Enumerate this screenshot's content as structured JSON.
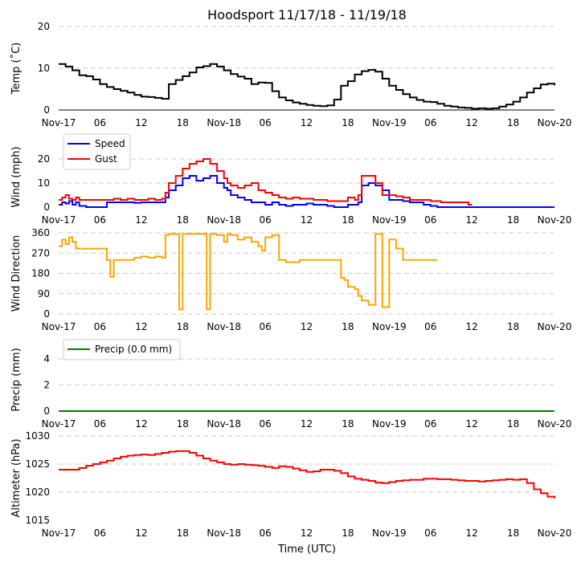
{
  "title": "Hoodsport 11/17/18 - 11/19/18",
  "xlabel": "Time (UTC)",
  "x_tick_labels": [
    "Nov-17",
    "06",
    "12",
    "18",
    "Nov-18",
    "06",
    "12",
    "18",
    "Nov-19",
    "06",
    "12",
    "18",
    "Nov-20"
  ],
  "chart_data": [
    {
      "type": "line",
      "ylabel": "Temp ($^\\circ$C)",
      "ylabel_display": "Temp (˚C)",
      "ylim": [
        0,
        20
      ],
      "yticks": [
        0,
        10,
        20
      ],
      "x_unit": "hours since Nov-17 00:00 UTC",
      "xlim": [
        0,
        72
      ],
      "series": [
        {
          "name": "Temp",
          "color": "#000000",
          "x": [
            0,
            1,
            2,
            3,
            4,
            5,
            6,
            7,
            8,
            9,
            10,
            11,
            12,
            13,
            14,
            15,
            16,
            17,
            18,
            19,
            20,
            21,
            22,
            23,
            24,
            25,
            26,
            27,
            28,
            29,
            30,
            31,
            32,
            33,
            34,
            35,
            36,
            37,
            38,
            39,
            40,
            41,
            42,
            43,
            44,
            45,
            46,
            47,
            48,
            49,
            50,
            51,
            52,
            53,
            54,
            55,
            56,
            57,
            58,
            59,
            60,
            61,
            62,
            63,
            64,
            65,
            66,
            67,
            68,
            69,
            70,
            71,
            72
          ],
          "values": [
            11,
            10.4,
            9.5,
            8.3,
            8.1,
            7.3,
            6.2,
            5.5,
            5,
            4.6,
            4.2,
            3.6,
            3.2,
            3.1,
            2.9,
            2.7,
            6.2,
            7.2,
            8.1,
            9,
            10.2,
            10.5,
            11,
            10.4,
            9.5,
            8.6,
            8,
            7.5,
            6.2,
            6.6,
            6.5,
            4.5,
            3,
            2.3,
            1.8,
            1.5,
            1.2,
            1,
            0.9,
            1.1,
            2.5,
            5.8,
            6.9,
            8.5,
            9.3,
            9.6,
            9.2,
            7.5,
            5.8,
            4.8,
            3.8,
            3,
            2.4,
            2,
            1.9,
            1.5,
            1,
            0.8,
            0.6,
            0.5,
            0.3,
            0.4,
            0.3,
            0.4,
            0.8,
            1.3,
            2,
            3,
            4.2,
            5.2,
            6.1,
            6.3,
            5.9
          ]
        }
      ]
    },
    {
      "type": "line",
      "ylabel": "Wind (mph)",
      "ylim": [
        0,
        25
      ],
      "yticks": [
        0,
        10,
        20
      ],
      "xlim": [
        0,
        72
      ],
      "legend": "upper-left",
      "series": [
        {
          "name": "Speed",
          "color": "#0000ff",
          "x": [
            0,
            0.5,
            1,
            1.5,
            2,
            2.5,
            3,
            3.5,
            4,
            5,
            6,
            7,
            8,
            9,
            10,
            11,
            12,
            13,
            14,
            15,
            15.5,
            16,
            17,
            18,
            19,
            20,
            21,
            22,
            23,
            24,
            24.5,
            25,
            26,
            27,
            28,
            29,
            30,
            31,
            32,
            33,
            34,
            35,
            36,
            37,
            38,
            39,
            40,
            41,
            42,
            43,
            43.5,
            44,
            45,
            46,
            47,
            48,
            49,
            50,
            51,
            52,
            53,
            54,
            55,
            56,
            57,
            58,
            59,
            60,
            61,
            62,
            63,
            64,
            65,
            66,
            67,
            68,
            69,
            70,
            71,
            72
          ],
          "values": [
            1,
            2,
            1.5,
            2.5,
            1,
            2,
            0.5,
            0.5,
            0,
            0,
            0,
            2,
            2,
            2,
            2,
            1.8,
            2,
            2,
            2,
            2,
            4,
            7,
            9,
            12,
            13,
            11,
            12,
            13,
            10,
            8,
            7,
            5,
            4,
            3,
            2,
            2,
            1,
            2,
            1,
            0.5,
            1,
            1,
            1.5,
            1,
            1,
            0.5,
            0,
            0,
            1,
            1,
            2,
            9,
            10,
            9,
            7,
            3,
            3,
            2.5,
            2,
            2,
            1,
            0.5,
            0,
            0,
            0,
            0,
            0,
            0,
            0,
            0,
            0,
            0,
            0,
            0,
            0,
            0,
            0,
            0,
            0,
            0
          ]
        },
        {
          "name": "Gust",
          "color": "#ff0000",
          "x": [
            0,
            0.5,
            1,
            1.5,
            2,
            2.5,
            3,
            3.5,
            7,
            8,
            9,
            10,
            11,
            12,
            13,
            14,
            15,
            15.5,
            16,
            17,
            18,
            19,
            20,
            21,
            22,
            23,
            24,
            24.5,
            25,
            26,
            27,
            28,
            29,
            30,
            31,
            32,
            33,
            34,
            35,
            36,
            37,
            38,
            39,
            42,
            43,
            43.5,
            44,
            45,
            46,
            47,
            48,
            49,
            50,
            51,
            52,
            53,
            54,
            55,
            55.5,
            59.5,
            60
          ],
          "values": [
            3,
            4,
            5,
            3.5,
            3,
            4,
            3,
            3,
            3,
            3.5,
            3,
            3.5,
            3,
            3,
            3.5,
            3,
            3.5,
            6,
            10,
            13,
            16,
            18,
            19,
            20,
            18,
            15,
            12,
            10,
            9,
            8,
            9,
            10,
            7,
            6,
            5,
            4,
            3.5,
            4,
            3.5,
            3.5,
            3,
            3,
            2.5,
            4,
            3,
            5,
            13,
            13,
            10,
            5,
            5,
            4.5,
            4,
            3,
            3,
            3,
            2.5,
            2.5,
            2,
            1,
            1
          ]
        }
      ]
    },
    {
      "type": "line",
      "ylabel": "Wind Direction",
      "ylim": [
        0,
        360
      ],
      "yticks": [
        0,
        90,
        180,
        270,
        360
      ],
      "xlim": [
        0,
        72
      ],
      "series": [
        {
          "name": "Direction",
          "color": "#ffa500",
          "x": [
            0,
            0.5,
            1,
            1.5,
            2,
            2.5,
            3,
            7,
            7.5,
            8,
            9,
            10,
            11,
            12,
            13,
            14,
            15,
            15.5,
            16,
            17,
            17.5,
            18,
            18.5,
            19,
            20,
            21,
            21.5,
            22,
            23,
            24,
            24.5,
            25,
            26,
            27,
            28,
            29,
            29.5,
            30,
            31,
            32,
            33,
            34,
            35,
            36,
            36.5,
            37,
            38,
            41,
            41.5,
            42,
            43,
            43.5,
            44,
            45,
            46,
            47,
            48,
            49,
            50,
            51,
            52,
            53,
            54,
            55
          ],
          "values": [
            300,
            330,
            310,
            340,
            320,
            290,
            290,
            240,
            165,
            240,
            240,
            240,
            250,
            255,
            250,
            255,
            250,
            350,
            355,
            355,
            20,
            355,
            355,
            355,
            355,
            355,
            20,
            355,
            350,
            320,
            355,
            350,
            330,
            340,
            320,
            300,
            280,
            340,
            350,
            240,
            230,
            230,
            240,
            240,
            240,
            240,
            240,
            160,
            150,
            120,
            110,
            80,
            60,
            40,
            355,
            30,
            330,
            290,
            240,
            240,
            240,
            240,
            240,
            240
          ]
        }
      ]
    },
    {
      "type": "line",
      "ylabel": "Precip (mm)",
      "ylim": [
        0,
        4.8
      ],
      "yticks": [
        0,
        2,
        4
      ],
      "xlim": [
        0,
        72
      ],
      "legend": "upper-left",
      "series": [
        {
          "name": "Precip (0.0 mm)",
          "color": "#008000",
          "x": [
            0,
            72
          ],
          "values": [
            0,
            0
          ]
        }
      ]
    },
    {
      "type": "line",
      "ylabel": "Altimeter (hPa)",
      "ylim": [
        1015,
        1030
      ],
      "yticks": [
        1015,
        1020,
        1025,
        1030
      ],
      "xlim": [
        0,
        72
      ],
      "series": [
        {
          "name": "Altimeter",
          "color": "#ff0000",
          "x": [
            0,
            2,
            3,
            4,
            5,
            6,
            7,
            8,
            9,
            10,
            11,
            12,
            13,
            14,
            15,
            16,
            17,
            18,
            19,
            20,
            21,
            22,
            23,
            24,
            25,
            26,
            27,
            28,
            29,
            30,
            31,
            32,
            33,
            34,
            35,
            36,
            37,
            38,
            39,
            40,
            41,
            42,
            43,
            44,
            45,
            46,
            47,
            48,
            49,
            50,
            51,
            52,
            53,
            54,
            55,
            56,
            57,
            58,
            59,
            60,
            61,
            62,
            63,
            64,
            65,
            66,
            67,
            68,
            69,
            70,
            71,
            72
          ],
          "values": [
            1024,
            1024,
            1024.3,
            1024.7,
            1025,
            1025.3,
            1025.6,
            1026,
            1026.3,
            1026.5,
            1026.6,
            1026.7,
            1026.6,
            1026.8,
            1027,
            1027.2,
            1027.3,
            1027.3,
            1027,
            1026.5,
            1026,
            1025.6,
            1025.3,
            1025,
            1024.9,
            1025,
            1024.9,
            1024.8,
            1024.7,
            1024.5,
            1024.3,
            1024.6,
            1024.5,
            1024.2,
            1023.9,
            1023.6,
            1023.7,
            1024,
            1024,
            1023.8,
            1023.4,
            1022.8,
            1022.4,
            1022.2,
            1022,
            1021.7,
            1021.6,
            1021.8,
            1022,
            1022.1,
            1022.2,
            1022.2,
            1022.4,
            1022.4,
            1022.3,
            1022.3,
            1022.2,
            1022.1,
            1022,
            1022,
            1021.9,
            1022,
            1022.1,
            1022.2,
            1022.3,
            1022.2,
            1022.3,
            1021.6,
            1020.5,
            1019.8,
            1019.2,
            1018.9
          ]
        }
      ]
    }
  ]
}
